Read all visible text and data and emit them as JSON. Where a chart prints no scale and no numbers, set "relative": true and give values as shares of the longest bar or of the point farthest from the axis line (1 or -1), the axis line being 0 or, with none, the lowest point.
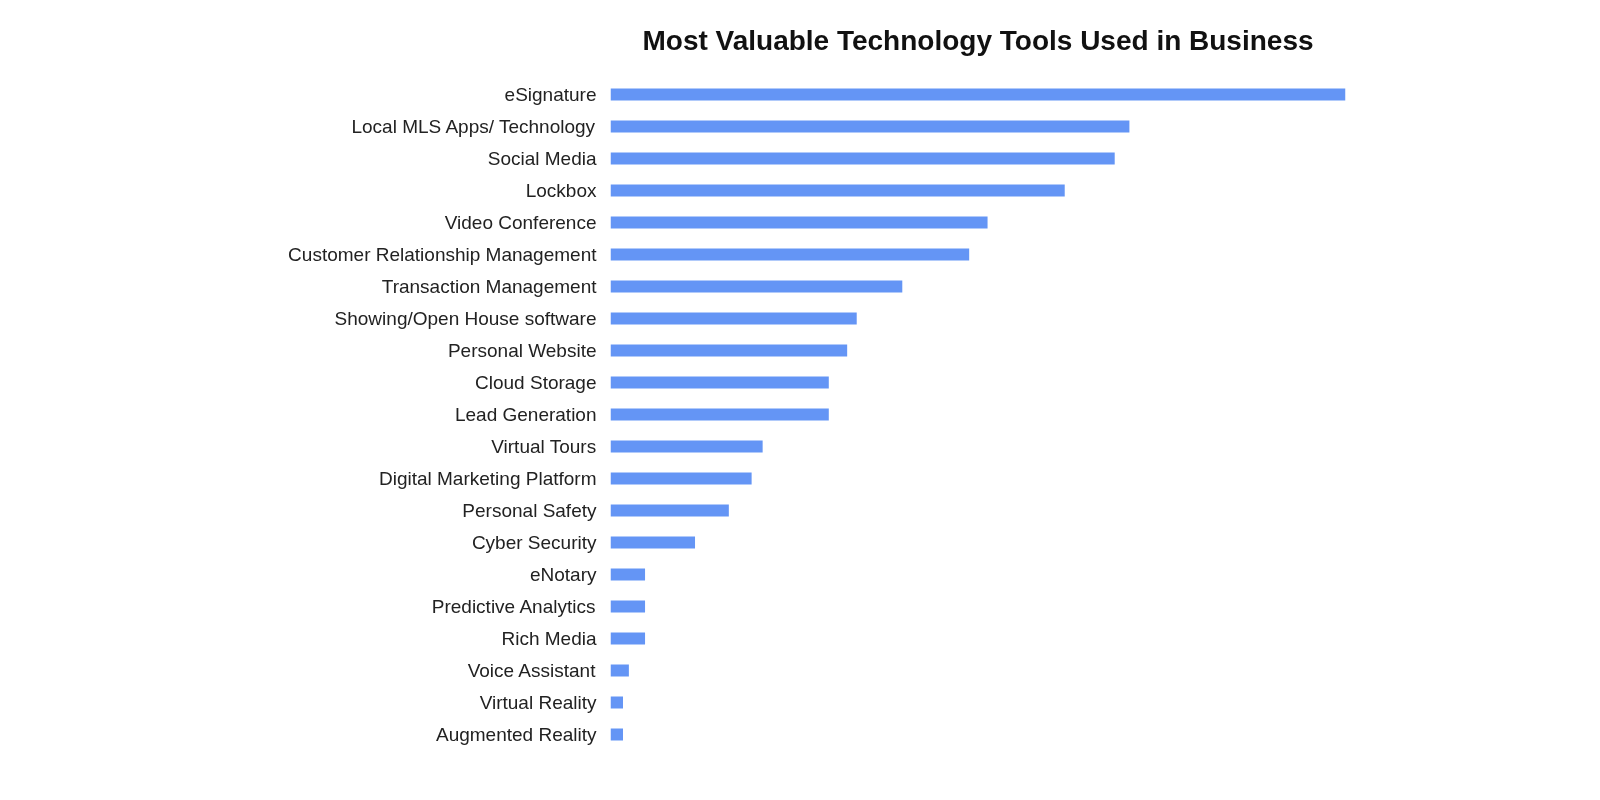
{
  "chart_data": {
    "type": "bar",
    "orientation": "horizontal",
    "relative": true,
    "title": "Most Valuable Technology Tools Used in Business",
    "categories": [
      "eSignature",
      "Local MLS Apps/ Technology",
      "Social Media",
      "Lockbox",
      "Video Conference",
      "Customer Relationship Management",
      "Transaction Management",
      "Showing/Open House software",
      "Personal Website",
      "Cloud Storage",
      "Lead Generation",
      "Virtual Tours",
      "Digital Marketing Platform",
      "Personal Safety",
      "Cyber Security",
      "eNotary",
      "Predictive Analytics",
      "Rich Media",
      "Voice Assistant",
      "Virtual Reality",
      "Augmented Reality"
    ],
    "values": [
      1,
      0.706,
      0.686,
      0.618,
      0.513,
      0.488,
      0.397,
      0.335,
      0.322,
      0.297,
      0.297,
      0.207,
      0.192,
      0.161,
      0.115,
      0.047,
      0.047,
      0.047,
      0.025,
      0.017,
      0.017
    ],
    "color": "#6495f5",
    "grid": false
  }
}
